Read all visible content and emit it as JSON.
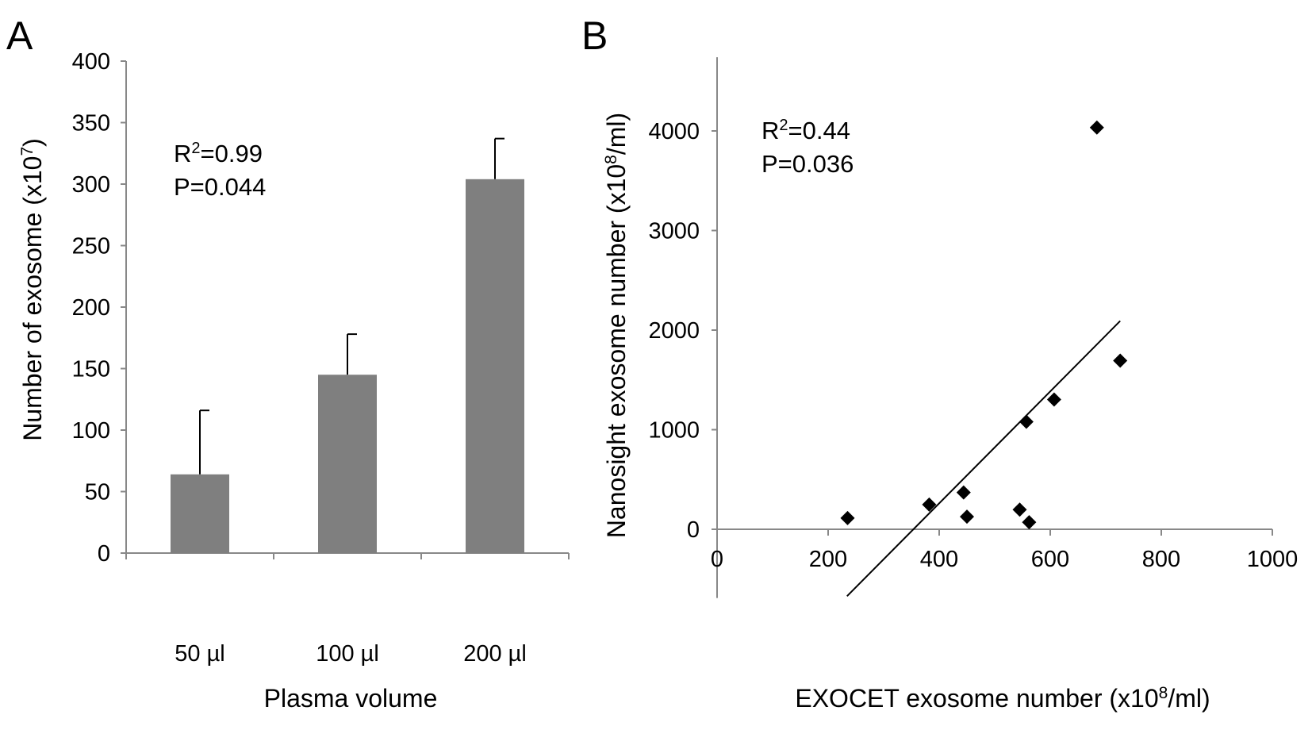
{
  "chart_data": [
    {
      "panel_label": "A",
      "type": "bar",
      "categories": [
        "50 µl",
        "100 µl",
        "200 µl"
      ],
      "values": [
        64,
        145,
        304
      ],
      "error_upper": [
        116,
        178,
        337
      ],
      "xlabel": "Plasma volume",
      "ylabel_main": "Number of exosome (x10",
      "ylabel_sup": "7",
      "ylabel_end": ")",
      "ylim": [
        0,
        400
      ],
      "yticks": [
        "0",
        "50",
        "100",
        "150",
        "200",
        "250",
        "300",
        "350",
        "400"
      ],
      "annotation": {
        "r2_label": "R",
        "r2_sup": "2",
        "r2_value": "=0.99",
        "p": "P=0.044"
      },
      "bar_color": "#7f7f7f",
      "grid": false
    },
    {
      "panel_label": "B",
      "type": "scatter",
      "points": [
        {
          "x": 235,
          "y": 113
        },
        {
          "x": 382,
          "y": 248
        },
        {
          "x": 444,
          "y": 370
        },
        {
          "x": 450,
          "y": 126
        },
        {
          "x": 545,
          "y": 197
        },
        {
          "x": 562,
          "y": 71
        },
        {
          "x": 557,
          "y": 1080
        },
        {
          "x": 607,
          "y": 1303
        },
        {
          "x": 726,
          "y": 1693
        },
        {
          "x": 684,
          "y": 4034
        }
      ],
      "trendline": {
        "x": [
          234,
          726
        ],
        "y": [
          -672,
          2092
        ]
      },
      "xlabel_main": "EXOCET exosome number (x10",
      "xlabel_sup": "8",
      "xlabel_end": "/ml)",
      "ylabel_main": "Nanosight exosome number (x10",
      "ylabel_sup": "8",
      "ylabel_end": "/ml)",
      "xlim": [
        0,
        1000
      ],
      "ylim": [
        -690,
        4740
      ],
      "xticks": [
        "0",
        "200",
        "400",
        "600",
        "800",
        "1000"
      ],
      "yticks": [
        "0",
        "1000",
        "2000",
        "3000",
        "4000"
      ],
      "annotation": {
        "r2_label": "R",
        "r2_sup": "2",
        "r2_value": "=0.44",
        "p": "P=0.036"
      },
      "marker_color": "#000000",
      "grid": false
    }
  ]
}
